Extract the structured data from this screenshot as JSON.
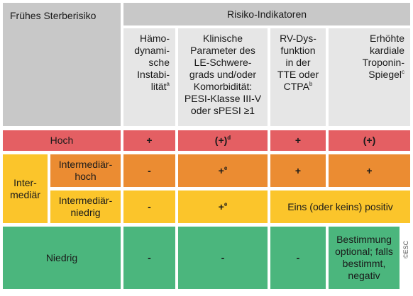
{
  "header": {
    "left_title": "Frühes Sterberisiko",
    "right_title": "Risiko-Indikatoren",
    "columns": [
      {
        "label": "Hämo-\ndynami-\nsche\nInstabi-\nlität",
        "sup": "a"
      },
      {
        "label": "Klinische\nParameter des\nLE-Schwere-\ngrads und/oder\nKomorbidität:\nPESI-Klasse III-V\noder sPESI ≥1",
        "sup": ""
      },
      {
        "label": "RV-Dys-\nfunktion\nin der\nTTE oder\nCTPA",
        "sup": "b"
      },
      {
        "label": "Erhöhte\nkardiale\nTroponin-\nSpiegel",
        "sup": "c"
      }
    ]
  },
  "rows": {
    "hoch": {
      "label": "Hoch",
      "c1": "+",
      "c2": "(+)",
      "c2_sup": "d",
      "c3": "+",
      "c4": "(+)"
    },
    "intermediaer": {
      "label": "Inter-\nmediär"
    },
    "intermediaer_hoch": {
      "label": "Intermediär-\nhoch",
      "c1": "-",
      "c2": "+",
      "c2_sup": "e",
      "c3": "+",
      "c4": "+"
    },
    "intermediaer_niedrig": {
      "label": "Intermediär-\nniedrig",
      "c1": "-",
      "c2": "+",
      "c2_sup": "e",
      "c34": "Eins (oder keins) positiv"
    },
    "niedrig": {
      "label": "Niedrig",
      "c1": "-",
      "c2": "-",
      "c3": "-",
      "c4": "Bestimmung\noptional; falls\nbestimmt,\nnegativ"
    }
  },
  "copyright": "©ESC",
  "colors": {
    "red": "#e45f63",
    "orange": "#eb8c32",
    "yellow": "#fbc52b",
    "green": "#4bb67d",
    "header": "#c8c8c8",
    "header_light": "#e6e6e6"
  }
}
